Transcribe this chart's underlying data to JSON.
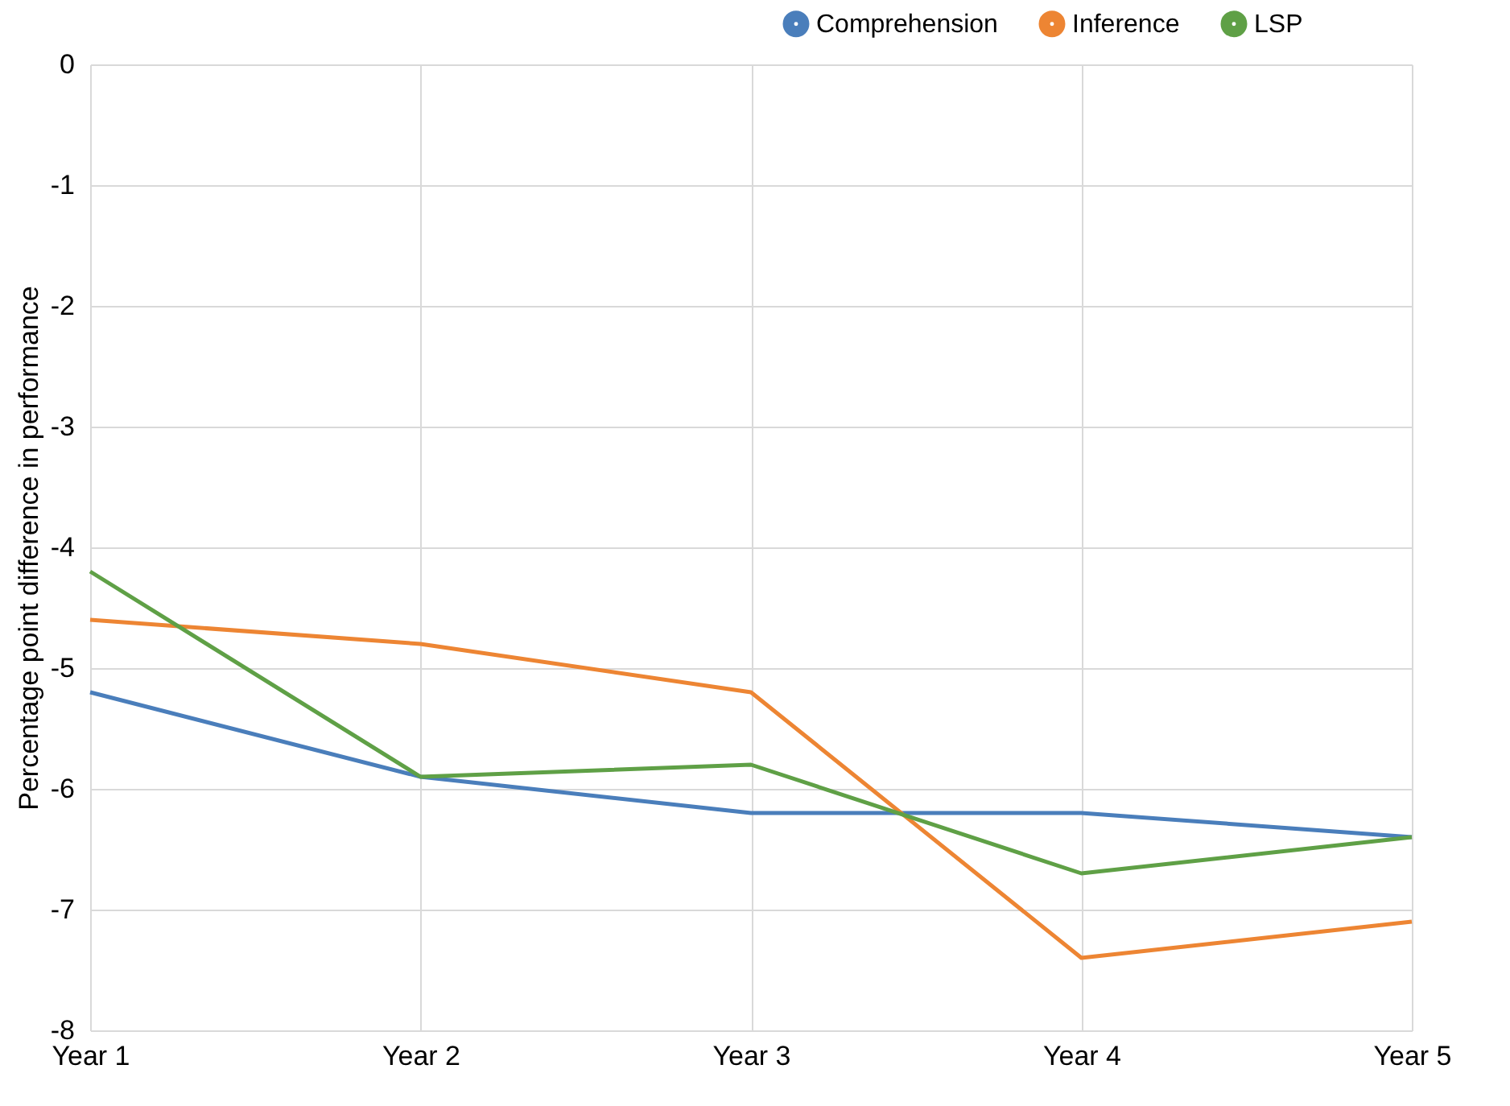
{
  "chart_data": {
    "type": "line",
    "ylabel": "Percentage point difference in performance",
    "categories": [
      "Year 1",
      "Year 2",
      "Year 3",
      "Year 4",
      "Year 5"
    ],
    "series": [
      {
        "name": "Comprehension",
        "color": "#4a7ebb",
        "values": [
          -5.2,
          -5.9,
          -6.2,
          -6.2,
          -6.4
        ]
      },
      {
        "name": "Inference",
        "color": "#ed8533",
        "values": [
          -4.6,
          -4.8,
          -5.2,
          -7.4,
          -7.1
        ]
      },
      {
        "name": "LSP",
        "color": "#5fa046",
        "values": [
          -4.2,
          -5.9,
          -5.8,
          -6.7,
          -6.4
        ]
      }
    ],
    "ylim": [
      -8,
      0
    ],
    "yticks": [
      0,
      -1,
      -2,
      -3,
      -4,
      -5,
      -6,
      -7,
      -8
    ],
    "grid": true,
    "legend": "top right",
    "marker": "none",
    "line_style": "solid"
  }
}
